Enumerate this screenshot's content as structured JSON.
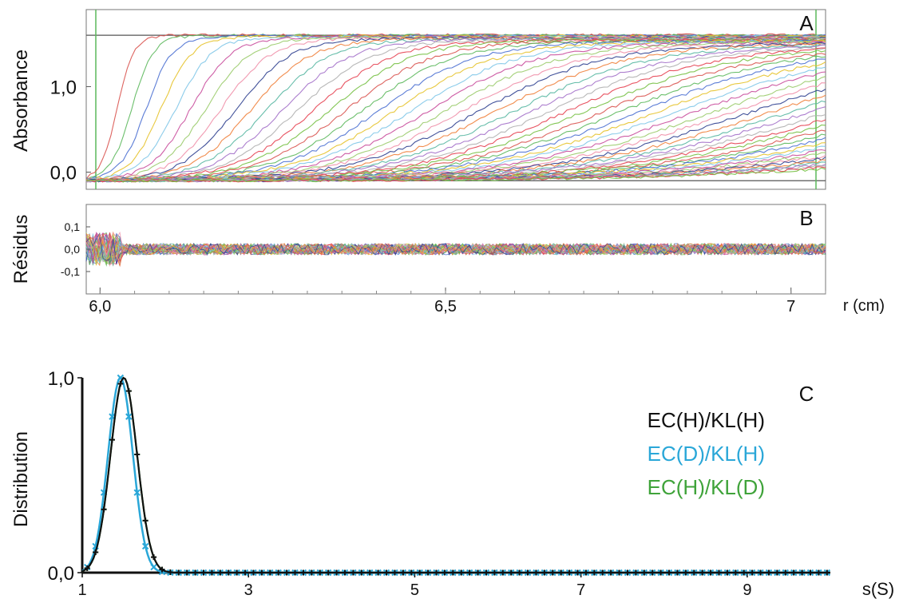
{
  "chart_data": [
    {
      "id": "A",
      "type": "line",
      "panel_label": "A",
      "title": "",
      "ylabel": "Absorbance",
      "xlabel": "",
      "xlim": [
        5.98,
        7.05
      ],
      "ylim": [
        -0.2,
        1.9
      ],
      "yticks": [
        {
          "value": 0.0,
          "label": "0,0"
        },
        {
          "value": 1.0,
          "label": "1,0"
        }
      ],
      "plateau": 1.6,
      "baseline": -0.1,
      "series_count": 60,
      "grid": false,
      "legend": "none",
      "description_of_data": "sedimentation velocity boundary profiles moving outward over time"
    },
    {
      "id": "B",
      "type": "line",
      "panel_label": "B",
      "ylabel": "Résidus",
      "xlabel": "r (cm)",
      "xlim": [
        5.98,
        7.05
      ],
      "ylim": [
        -0.2,
        0.2
      ],
      "yticks": [
        {
          "value": 0.1,
          "label": "0,1"
        },
        {
          "value": 0.0,
          "label": "0,0"
        },
        {
          "value": -0.1,
          "label": "-0,1"
        }
      ],
      "xticks": [
        {
          "value": 6.0,
          "label": "6,0"
        },
        {
          "value": 6.5,
          "label": "6,5"
        },
        {
          "value": 7.0,
          "label": "7"
        }
      ],
      "residual_amplitude": 0.025,
      "grid": false,
      "legend": "none"
    },
    {
      "id": "C",
      "type": "line",
      "panel_label": "C",
      "ylabel": "Distribution",
      "xlabel": "s(S)",
      "xlim": [
        1,
        10
      ],
      "ylim": [
        0,
        1
      ],
      "yticks": [
        {
          "value": 0.0,
          "label": "0,0"
        },
        {
          "value": 1.0,
          "label": "1,0"
        }
      ],
      "xticks": [
        {
          "value": 1,
          "label": "1"
        },
        {
          "value": 3,
          "label": "3"
        },
        {
          "value": 5,
          "label": "5"
        },
        {
          "value": 7,
          "label": "7"
        },
        {
          "value": 9,
          "label": "9"
        }
      ],
      "legend": "right",
      "series": [
        {
          "name": "EC(H)/KL(H)",
          "color": "#111111",
          "peak_s": 1.5,
          "width": 0.16,
          "marker": "plus"
        },
        {
          "name": "EC(D)/KL(H)",
          "color": "#2aa7d8",
          "peak_s": 1.46,
          "width": 0.15,
          "marker": "cross"
        },
        {
          "name": "EC(H)/KL(D)",
          "color": "#3fa33a",
          "peak_s": 1.5,
          "width": 0.16,
          "marker": "plus"
        }
      ]
    }
  ]
}
